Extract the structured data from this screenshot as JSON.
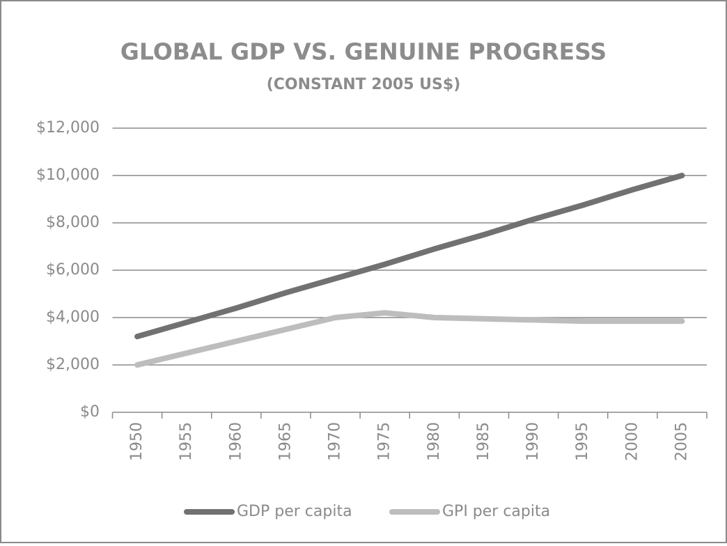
{
  "chart_data": {
    "type": "line",
    "title": "GLOBAL GDP VS. GENUINE PROGRESS",
    "subtitle": "(CONSTANT 2005 US$)",
    "categories": [
      "1950",
      "1955",
      "1960",
      "1965",
      "1970",
      "1975",
      "1980",
      "1985",
      "1990",
      "1995",
      "2000",
      "2005"
    ],
    "series": [
      {
        "name": "GDP per capita",
        "color": "#717171",
        "values": [
          3200,
          3800,
          4400,
          5050,
          5650,
          6250,
          6900,
          7500,
          8150,
          8750,
          9400,
          10000
        ]
      },
      {
        "name": "GPI per capita",
        "color": "#bdbdbd",
        "values": [
          2000,
          2500,
          3000,
          3500,
          4000,
          4200,
          4000,
          3950,
          3900,
          3850,
          3850,
          3850
        ]
      }
    ],
    "ylim": [
      0,
      12000
    ],
    "yticks": [
      {
        "value": 0,
        "label": "$0"
      },
      {
        "value": 2000,
        "label": "$2,000"
      },
      {
        "value": 4000,
        "label": "$4,000"
      },
      {
        "value": 6000,
        "label": "$6,000"
      },
      {
        "value": 8000,
        "label": "$8,000"
      },
      {
        "value": 10000,
        "label": "$10,000"
      },
      {
        "value": 12000,
        "label": "$12,000"
      }
    ],
    "grid": true,
    "legend": "bottom"
  }
}
